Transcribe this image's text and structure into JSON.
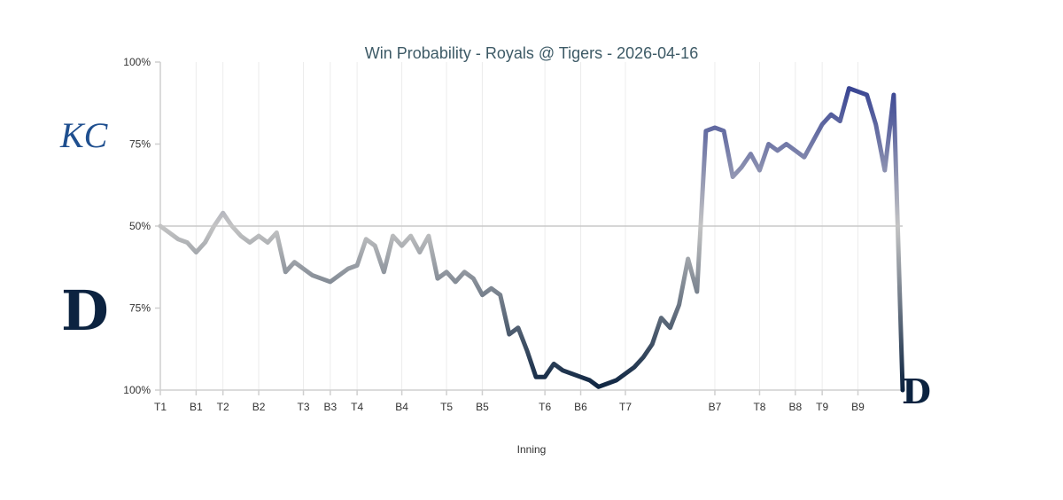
{
  "chart_data": {
    "type": "line",
    "title": "Win Probability - Royals @ Tigers - 2026-04-16",
    "xlabel": "Inning",
    "ylabel": "",
    "y_ticks": [
      "100%",
      "75%",
      "50%",
      "75%",
      "100%"
    ],
    "y_tick_values": [
      100,
      75,
      50,
      25,
      0
    ],
    "ylim": [
      0,
      100
    ],
    "midline": 50,
    "teams": {
      "top": {
        "name": "Royals",
        "logo_text": "KC",
        "color": "#1f2d8a"
      },
      "bottom": {
        "name": "Tigers",
        "logo_text": "D",
        "color": "#0c2340"
      }
    },
    "x_ticks": [
      {
        "label": "T1",
        "x": 0
      },
      {
        "label": "B1",
        "x": 4
      },
      {
        "label": "T2",
        "x": 7
      },
      {
        "label": "B2",
        "x": 11
      },
      {
        "label": "T3",
        "x": 16
      },
      {
        "label": "B3",
        "x": 19
      },
      {
        "label": "T4",
        "x": 22
      },
      {
        "label": "B4",
        "x": 27
      },
      {
        "label": "T5",
        "x": 32
      },
      {
        "label": "B5",
        "x": 36
      },
      {
        "label": "T6",
        "x": 43
      },
      {
        "label": "B6",
        "x": 47
      },
      {
        "label": "T7",
        "x": 52
      },
      {
        "label": "B7",
        "x": 62
      },
      {
        "label": "T8",
        "x": 67
      },
      {
        "label": "B8",
        "x": 71
      },
      {
        "label": "T9",
        "x": 74
      },
      {
        "label": "B9",
        "x": 78
      }
    ],
    "x_range": [
      0,
      83
    ],
    "series": [
      {
        "name": "Royals win probability",
        "x": [
          0,
          1,
          2,
          3,
          4,
          5,
          6,
          7,
          8,
          9,
          10,
          11,
          12,
          13,
          14,
          15,
          16,
          17,
          18,
          19,
          20,
          21,
          22,
          23,
          24,
          25,
          26,
          27,
          28,
          29,
          30,
          31,
          32,
          33,
          34,
          35,
          36,
          37,
          38,
          39,
          40,
          41,
          42,
          43,
          44,
          45,
          46,
          47,
          48,
          49,
          50,
          51,
          52,
          53,
          54,
          55,
          56,
          57,
          58,
          59,
          60,
          61,
          62,
          63,
          64,
          65,
          66,
          67,
          68,
          69,
          70,
          71,
          72,
          73,
          74,
          75,
          76,
          77,
          78,
          79,
          80,
          81,
          82,
          83
        ],
        "values": [
          50,
          48,
          46,
          45,
          42,
          45,
          50,
          54,
          50,
          47,
          45,
          47,
          45,
          48,
          36,
          39,
          37,
          35,
          34,
          33,
          35,
          37,
          38,
          46,
          44,
          36,
          47,
          44,
          47,
          42,
          47,
          34,
          36,
          33,
          36,
          34,
          29,
          31,
          29,
          17,
          19,
          12,
          4,
          4,
          8,
          6,
          5,
          4,
          3,
          1,
          2,
          3,
          5,
          7,
          10,
          14,
          22,
          19,
          26,
          40,
          30,
          79,
          80,
          79,
          65,
          68,
          72,
          67,
          75,
          73,
          75,
          73,
          71,
          76,
          81,
          84,
          82,
          92,
          91,
          90,
          81,
          67,
          90,
          0
        ]
      }
    ]
  }
}
